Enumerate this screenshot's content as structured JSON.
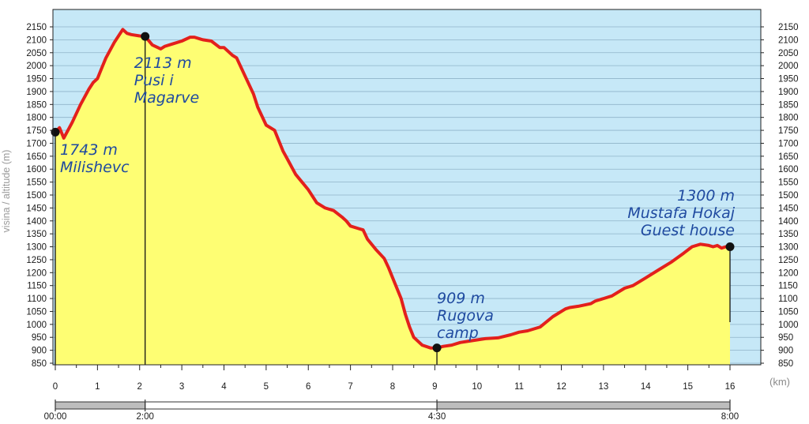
{
  "chart_data": {
    "type": "area",
    "xlabel": "(km)",
    "ylabel": "visina / altitude (m)",
    "xlim": [
      0,
      16
    ],
    "ylim": [
      850,
      2150
    ],
    "x_ticks": [
      0,
      1,
      2,
      3,
      4,
      5,
      6,
      7,
      8,
      9,
      10,
      11,
      12,
      13,
      14,
      15,
      16
    ],
    "y_ticks": [
      850,
      900,
      950,
      1000,
      1050,
      1100,
      1150,
      1200,
      1250,
      1300,
      1350,
      1400,
      1450,
      1500,
      1550,
      1600,
      1650,
      1700,
      1750,
      1800,
      1850,
      1900,
      1950,
      2000,
      2050,
      2100,
      2150
    ],
    "grid": true,
    "colors": {
      "sky": "#c6e8f7",
      "fill": "#fefe73",
      "line": "#e3201c",
      "marker": "#111111",
      "annotation": "#1f4aa0"
    },
    "series": [
      {
        "x": [
          0,
          0.1,
          0.2,
          0.4,
          0.6,
          0.8,
          0.9,
          1.0,
          1.1,
          1.2,
          1.4,
          1.6,
          1.7,
          1.8,
          2.0,
          2.13,
          2.3,
          2.5,
          2.6,
          2.8,
          3.0,
          3.2,
          3.3,
          3.5,
          3.7,
          3.9,
          4.0,
          4.2,
          4.3,
          4.5,
          4.7,
          4.8,
          5.0,
          5.2,
          5.4,
          5.5,
          5.7,
          6.0,
          6.2,
          6.4,
          6.6,
          6.8,
          6.9,
          7.0,
          7.2,
          7.3,
          7.4,
          7.6,
          7.8,
          7.9,
          8.0,
          8.2,
          8.3,
          8.4,
          8.5,
          8.7,
          8.9,
          9.05,
          9.2,
          9.4,
          9.6,
          9.8,
          10.0,
          10.2,
          10.5,
          10.8,
          11.0,
          11.2,
          11.5,
          11.8,
          12.1,
          12.2,
          12.4,
          12.7,
          12.8,
          13.0,
          13.2,
          13.5,
          13.7,
          13.8,
          14.0,
          14.3,
          14.6,
          14.9,
          15.1,
          15.3,
          15.5,
          15.6,
          15.7,
          15.8,
          15.9,
          16.0
        ],
        "values": [
          1743,
          1760,
          1720,
          1780,
          1850,
          1910,
          1935,
          1950,
          1990,
          2030,
          2090,
          2140,
          2125,
          2120,
          2115,
          2113,
          2080,
          2065,
          2075,
          2085,
          2095,
          2110,
          2110,
          2100,
          2095,
          2070,
          2070,
          2040,
          2030,
          1960,
          1890,
          1840,
          1770,
          1750,
          1670,
          1640,
          1580,
          1520,
          1470,
          1450,
          1440,
          1415,
          1400,
          1380,
          1370,
          1365,
          1330,
          1290,
          1255,
          1220,
          1180,
          1100,
          1040,
          990,
          950,
          920,
          909,
          909,
          915,
          920,
          930,
          935,
          940,
          945,
          948,
          960,
          970,
          975,
          990,
          1030,
          1060,
          1065,
          1070,
          1080,
          1090,
          1100,
          1110,
          1140,
          1150,
          1160,
          1180,
          1210,
          1240,
          1275,
          1300,
          1310,
          1305,
          1300,
          1305,
          1295,
          1300,
          1300
        ]
      }
    ],
    "points": [
      {
        "x": 0,
        "y": 1743,
        "label_lines": [
          "1743 m",
          "Milishevc"
        ]
      },
      {
        "x": 2.13,
        "y": 2113,
        "label_lines": [
          "2113 m",
          "Pusi i",
          "Magarve"
        ]
      },
      {
        "x": 9.05,
        "y": 909,
        "label_lines": [
          "909 m",
          "Rugova",
          "camp"
        ]
      },
      {
        "x": 16,
        "y": 1300,
        "label_lines": [
          "1300 m",
          "Mustafa Hokaj",
          "Guest house"
        ]
      }
    ],
    "timeline": {
      "labels": [
        "00:00",
        "2:00",
        "4:30",
        "8:00"
      ],
      "km": [
        0,
        2.13,
        9.05,
        16
      ],
      "segment_colors": [
        "#bdbdbd",
        "#ffffff",
        "#bdbdbd"
      ]
    }
  }
}
